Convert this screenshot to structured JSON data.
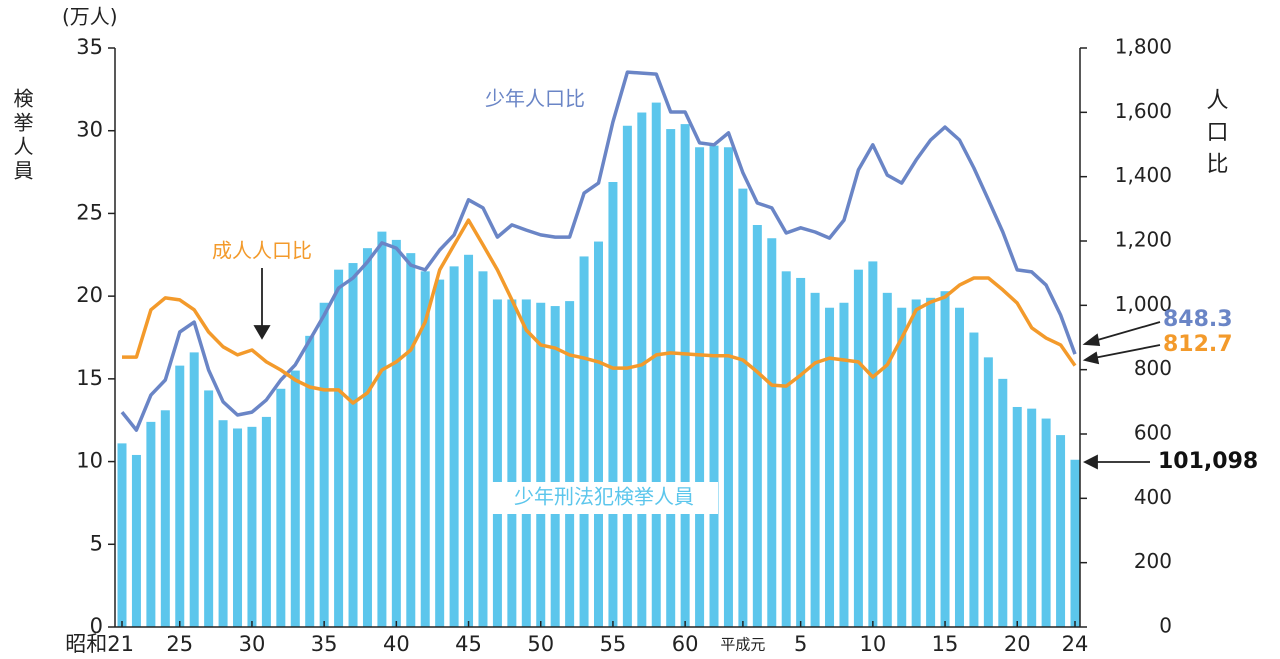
{
  "chart_data": {
    "type": "bar",
    "y_unit_label": "(万人)",
    "ylabel": "検挙人員",
    "y2label": "人口比",
    "categories": [
      "昭和21",
      null,
      null,
      null,
      "25",
      null,
      null,
      null,
      null,
      "30",
      null,
      null,
      null,
      null,
      "35",
      null,
      null,
      null,
      null,
      "40",
      null,
      null,
      null,
      null,
      "45",
      null,
      null,
      null,
      null,
      "50",
      null,
      null,
      null,
      null,
      "55",
      null,
      null,
      null,
      null,
      "60",
      null,
      null,
      null,
      "平成元",
      null,
      null,
      null,
      "5",
      null,
      null,
      null,
      null,
      "10",
      null,
      null,
      null,
      null,
      "15",
      null,
      null,
      null,
      null,
      "20",
      null,
      null,
      null,
      "24"
    ],
    "series": [
      {
        "name": "少年刑法犯検挙人員",
        "type": "bar",
        "axis": "y",
        "color": "#5cc6ec",
        "values": [
          11.1,
          10.4,
          12.4,
          13.1,
          15.8,
          16.6,
          14.3,
          12.5,
          12.0,
          12.1,
          12.7,
          14.4,
          15.5,
          17.6,
          19.6,
          21.6,
          22.0,
          22.9,
          23.9,
          23.4,
          22.6,
          21.5,
          21.0,
          21.8,
          22.5,
          21.5,
          19.8,
          19.8,
          19.8,
          19.6,
          19.4,
          19.7,
          22.4,
          23.3,
          26.9,
          30.3,
          31.1,
          31.7,
          30.1,
          30.4,
          29.0,
          29.1,
          29.0,
          26.5,
          24.3,
          23.5,
          21.5,
          21.1,
          20.2,
          19.3,
          19.6,
          21.6,
          22.1,
          20.2,
          19.3,
          19.8,
          19.9,
          20.3,
          19.3,
          17.8,
          16.3,
          15.0,
          13.3,
          13.2,
          12.6,
          11.6,
          10.1098
        ],
        "value_labels": [
          null,
          null,
          null,
          null,
          null,
          null,
          null,
          null,
          null,
          null,
          null,
          null,
          null,
          null,
          null,
          null,
          null,
          null,
          null,
          null,
          null,
          null,
          null,
          null,
          null,
          null,
          null,
          null,
          null,
          null,
          null,
          null,
          null,
          null,
          null,
          null,
          null,
          null,
          null,
          null,
          null,
          null,
          null,
          null,
          null,
          null,
          null,
          null,
          null,
          null,
          null,
          null,
          null,
          null,
          null,
          null,
          null,
          null,
          null,
          null,
          null,
          null,
          null,
          null,
          null,
          null,
          "101,098"
        ]
      },
      {
        "name": "少年人口比",
        "type": "line",
        "axis": "y2",
        "color": "#6a85c6",
        "values": [
          668,
          612,
          721,
          768,
          917,
          948,
          799,
          700,
          659,
          668,
          706,
          768,
          815,
          892,
          970,
          1054,
          1085,
          1135,
          1194,
          1178,
          1125,
          1110,
          1172,
          1219,
          1328,
          1303,
          1212,
          1250,
          1234,
          1219,
          1212,
          1212,
          1349,
          1380,
          1570,
          1725,
          1722,
          1719,
          1601,
          1601,
          1505,
          1499,
          1536,
          1412,
          1318,
          1303,
          1225,
          1241,
          1228,
          1209,
          1265,
          1421,
          1499,
          1405,
          1380,
          1452,
          1514,
          1554,
          1514,
          1427,
          1328,
          1228,
          1110,
          1104,
          1063,
          970,
          848.3
        ]
      },
      {
        "name": "成人人口比",
        "type": "line",
        "axis": "y2",
        "color": "#f39a2b",
        "values": [
          839,
          839,
          986,
          1023,
          1017,
          986,
          917,
          871,
          846,
          861,
          824,
          799,
          768,
          746,
          737,
          737,
          696,
          728,
          799,
          824,
          861,
          948,
          1110,
          1188,
          1265,
          1188,
          1110,
          1017,
          923,
          877,
          867,
          846,
          836,
          824,
          805,
          805,
          815,
          846,
          852,
          849,
          846,
          843,
          843,
          830,
          793,
          752,
          749,
          783,
          821,
          836,
          830,
          824,
          777,
          815,
          898,
          986,
          1010,
          1026,
          1063,
          1085,
          1085,
          1048,
          1007,
          930,
          898,
          877,
          812.7
        ]
      }
    ],
    "ylim": [
      0,
      35
    ],
    "yticks": [
      0,
      5,
      10,
      15,
      20,
      25,
      30,
      35
    ],
    "y2lim": [
      0,
      1800
    ],
    "y2ticks": [
      0,
      200,
      400,
      600,
      800,
      {
        "value": 1000,
        "label": "1,000"
      },
      {
        "value": 1200,
        "label": "1,200"
      },
      {
        "value": 1400,
        "label": "1,400"
      },
      {
        "value": 1600,
        "label": "1,600"
      },
      {
        "value": 1800,
        "label": "1,800"
      }
    ],
    "grid": false
  }
}
